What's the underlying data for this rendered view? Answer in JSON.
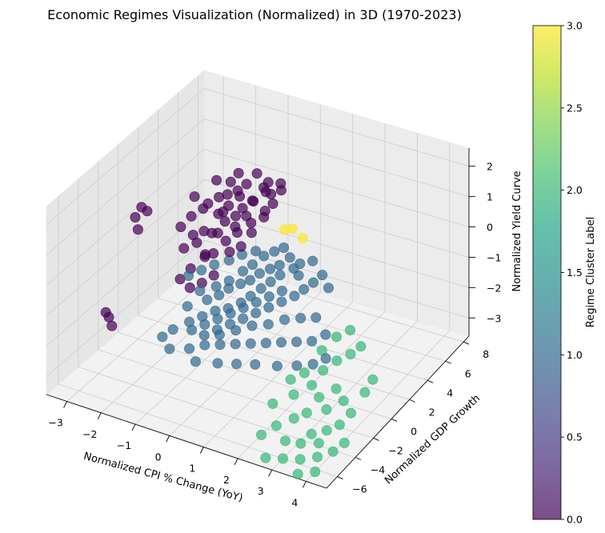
{
  "chart_data": {
    "type": "scatter",
    "title": "Economic Regimes Visualization (Normalized) in 3D (1970-2023)",
    "xlabel": "Normalized CPI % Change (YoY)",
    "ylabel": "Normalized GDP Growth",
    "zlabel": "Normalized Yield Curve",
    "xlim": [
      -3.6,
      4.6
    ],
    "ylim": [
      -7.2,
      8.6
    ],
    "zlim": [
      -3.6,
      2.6
    ],
    "x_ticks": [
      -3,
      -2,
      -1,
      0,
      1,
      2,
      3,
      4
    ],
    "y_ticks": [
      -6,
      -4,
      -2,
      0,
      2,
      4,
      6,
      8
    ],
    "z_ticks": [
      -3,
      -2,
      -1,
      0,
      1,
      2
    ],
    "grid": true,
    "point_size": 8,
    "alpha": 0.7,
    "colorbar": {
      "label": "Regime Cluster Label",
      "min": 0.0,
      "max": 3.0,
      "ticks": [
        "0.0",
        "0.5",
        "1.0",
        "1.5",
        "2.0",
        "2.5",
        "3.0"
      ],
      "colormap": "viridis"
    },
    "series": [
      {
        "cluster": 0,
        "color": "#440154",
        "points": [
          [
            -3.05,
            0.5,
            0.58
          ],
          [
            -2.85,
            0.4,
            0.55
          ],
          [
            -3.15,
            0.2,
            0.3
          ],
          [
            -2.95,
            -0.2,
            0.08
          ],
          [
            -1.78,
            1.6,
            1.05
          ],
          [
            -1.55,
            2.2,
            0.72
          ],
          [
            -3.2,
            -2.6,
            -2.05
          ],
          [
            -3.05,
            -2.8,
            -2.1
          ],
          [
            -2.9,
            -3.0,
            -2.28
          ],
          [
            -1.2,
            0.6,
            0.4
          ],
          [
            -1.05,
            0.9,
            0.3
          ],
          [
            -1.3,
            0.2,
            0.1
          ],
          [
            -1.0,
            1.4,
            0.8
          ],
          [
            -0.8,
            1.2,
            1.0
          ],
          [
            -0.6,
            0.7,
            0.9
          ],
          [
            -0.9,
            2.0,
            1.3
          ],
          [
            -0.5,
            1.9,
            1.4
          ],
          [
            -0.3,
            1.5,
            1.2
          ],
          [
            -0.1,
            1.2,
            1.1
          ],
          [
            0.1,
            1.0,
            1.0
          ],
          [
            -0.7,
            0.3,
            0.6
          ],
          [
            -0.4,
            0.1,
            0.5
          ],
          [
            -0.2,
            0.6,
            0.7
          ],
          [
            0.0,
            1.6,
            1.5
          ],
          [
            0.2,
            2.2,
            1.7
          ],
          [
            -0.5,
            2.6,
            1.6
          ],
          [
            -0.8,
            2.8,
            1.8
          ],
          [
            -0.3,
            3.0,
            1.9
          ],
          [
            0.1,
            2.8,
            1.8
          ],
          [
            0.3,
            2.4,
            1.6
          ],
          [
            -1.1,
            1.8,
            1.2
          ],
          [
            -1.4,
            1.2,
            0.9
          ],
          [
            -1.5,
            0.5,
            0.2
          ],
          [
            -1.6,
            -0.1,
            -0.1
          ],
          [
            -0.9,
            -0.3,
            0.0
          ],
          [
            -0.6,
            -0.5,
            0.2
          ],
          [
            -0.2,
            -0.2,
            0.3
          ],
          [
            0.0,
            0.3,
            0.4
          ],
          [
            0.2,
            0.7,
            0.8
          ],
          [
            0.4,
            1.3,
            1.2
          ],
          [
            0.5,
            1.9,
            1.5
          ],
          [
            -1.0,
            0.0,
            -0.2
          ],
          [
            -1.25,
            -0.6,
            -0.5
          ],
          [
            -1.45,
            -1.0,
            -0.8
          ],
          [
            -1.1,
            -1.2,
            -0.9
          ],
          [
            -0.8,
            -1.0,
            -0.7
          ],
          [
            -0.5,
            -0.8,
            -0.4
          ],
          [
            -1.35,
            2.4,
            1.5
          ],
          [
            -0.65,
            2.2,
            1.45
          ],
          [
            -0.15,
            2.0,
            1.35
          ],
          [
            0.35,
            1.6,
            1.3
          ],
          [
            0.55,
            2.6,
            1.75
          ],
          [
            -0.95,
            2.5,
            1.55
          ],
          [
            -1.7,
            1.0,
            0.6
          ],
          [
            -1.9,
            0.6,
            0.3
          ],
          [
            -0.35,
            0.9,
            0.75
          ],
          [
            -0.75,
            1.6,
            1.1
          ],
          [
            -0.45,
            1.3,
            0.95
          ],
          [
            0.05,
            2.5,
            1.7
          ],
          [
            0.45,
            2.9,
            1.85
          ]
        ]
      },
      {
        "cluster": 1,
        "color": "#31688e",
        "points": [
          [
            -0.8,
            -1.2,
            -0.9
          ],
          [
            -0.5,
            -1.5,
            -1.0
          ],
          [
            -0.2,
            -1.3,
            -0.8
          ],
          [
            0.0,
            -1.0,
            -0.6
          ],
          [
            0.3,
            -0.8,
            -0.4
          ],
          [
            0.5,
            -0.5,
            -0.3
          ],
          [
            0.7,
            -0.2,
            -0.1
          ],
          [
            0.9,
            0.2,
            0.0
          ],
          [
            1.1,
            0.5,
            0.1
          ],
          [
            0.2,
            -0.2,
            -0.2
          ],
          [
            0.4,
            0.1,
            0.0
          ],
          [
            -0.1,
            -0.6,
            -0.5
          ],
          [
            -0.4,
            -0.9,
            -0.7
          ],
          [
            0.6,
            0.6,
            0.2
          ],
          [
            0.8,
            1.0,
            0.3
          ],
          [
            1.0,
            1.3,
            0.4
          ],
          [
            1.3,
            0.9,
            0.3
          ],
          [
            1.5,
            0.6,
            0.1
          ],
          [
            1.2,
            0.2,
            -0.1
          ],
          [
            1.0,
            -0.1,
            -0.3
          ],
          [
            0.8,
            -0.4,
            -0.5
          ],
          [
            0.6,
            -0.8,
            -0.7
          ],
          [
            0.4,
            -1.1,
            -0.9
          ],
          [
            0.1,
            -1.4,
            -1.1
          ],
          [
            -0.2,
            -1.7,
            -1.2
          ],
          [
            -0.5,
            -2.0,
            -1.4
          ],
          [
            -0.8,
            -2.3,
            -1.6
          ],
          [
            -1.0,
            -1.8,
            -1.3
          ],
          [
            -0.3,
            -2.5,
            -1.8
          ],
          [
            0.0,
            -2.2,
            -1.6
          ],
          [
            0.3,
            -1.9,
            -1.4
          ],
          [
            0.6,
            -1.6,
            -1.2
          ],
          [
            0.9,
            -1.3,
            -1.0
          ],
          [
            1.2,
            -1.0,
            -0.8
          ],
          [
            1.5,
            -0.7,
            -0.6
          ],
          [
            1.8,
            -0.4,
            -0.4
          ],
          [
            2.0,
            -0.1,
            -0.2
          ],
          [
            2.2,
            0.2,
            0.0
          ],
          [
            1.7,
            0.4,
            0.0
          ],
          [
            1.4,
            -0.3,
            -0.4
          ],
          [
            1.1,
            -0.6,
            -0.6
          ],
          [
            0.8,
            -0.9,
            -0.8
          ],
          [
            0.5,
            -1.2,
            -1.0
          ],
          [
            0.2,
            -1.5,
            -1.2
          ],
          [
            -0.1,
            -1.8,
            -1.4
          ],
          [
            -0.4,
            -2.1,
            -1.6
          ],
          [
            -0.7,
            -2.4,
            -1.8
          ],
          [
            -1.2,
            -2.6,
            -1.9
          ],
          [
            -1.4,
            -3.0,
            -2.1
          ],
          [
            -1.1,
            -3.3,
            -2.3
          ],
          [
            -0.6,
            -3.0,
            -2.2
          ],
          [
            -0.2,
            -2.8,
            -2.0
          ],
          [
            0.2,
            -2.6,
            -1.9
          ],
          [
            0.6,
            -2.4,
            -1.8
          ],
          [
            1.0,
            -2.2,
            -1.7
          ],
          [
            1.4,
            -2.0,
            -1.6
          ],
          [
            1.8,
            -1.8,
            -1.5
          ],
          [
            2.2,
            -1.6,
            -1.4
          ],
          [
            2.6,
            -1.4,
            -1.3
          ],
          [
            2.9,
            -1.0,
            -1.1
          ],
          [
            2.5,
            -0.6,
            -0.8
          ],
          [
            2.1,
            -0.8,
            -0.9
          ],
          [
            1.7,
            -1.1,
            -1.0
          ],
          [
            1.3,
            -1.4,
            -1.2
          ],
          [
            0.9,
            -1.7,
            -1.3
          ],
          [
            0.5,
            -2.0,
            -1.5
          ],
          [
            0.1,
            -2.3,
            -1.7
          ],
          [
            -0.3,
            -3.4,
            -2.4
          ],
          [
            0.3,
            -3.2,
            -2.3
          ],
          [
            0.8,
            -3.0,
            -2.2
          ],
          [
            1.3,
            -2.8,
            -2.1
          ],
          [
            1.9,
            -2.6,
            -2.0
          ],
          [
            2.4,
            -2.3,
            -1.9
          ],
          [
            2.8,
            -2.0,
            -1.8
          ],
          [
            3.1,
            -1.7,
            -1.6
          ],
          [
            1.6,
            0.9,
            0.2
          ],
          [
            1.9,
            1.2,
            0.3
          ],
          [
            2.3,
            0.8,
            0.1
          ],
          [
            2.6,
            0.4,
            -0.1
          ],
          [
            -0.6,
            -0.4,
            -0.2
          ],
          [
            -0.9,
            -0.7,
            -0.4
          ],
          [
            -1.2,
            -1.0,
            -0.6
          ],
          [
            0.0,
            0.4,
            0.1
          ],
          [
            0.3,
            0.8,
            0.2
          ],
          [
            -0.3,
            0.1,
            -0.1
          ]
        ]
      },
      {
        "cluster": 2,
        "color": "#35b779",
        "points": [
          [
            2.6,
            -2.2,
            -2.1
          ],
          [
            2.9,
            -2.5,
            -2.3
          ],
          [
            3.2,
            -2.8,
            -2.5
          ],
          [
            3.5,
            -3.1,
            -2.7
          ],
          [
            3.0,
            -3.4,
            -2.9
          ],
          [
            2.7,
            -3.7,
            -3.1
          ],
          [
            3.3,
            -4.0,
            -3.3
          ],
          [
            3.6,
            -4.3,
            -3.4
          ],
          [
            2.4,
            -4.5,
            -3.2
          ],
          [
            2.8,
            -5.0,
            -3.4
          ],
          [
            3.8,
            -5.2,
            -3.5
          ],
          [
            3.4,
            -5.6,
            -3.6
          ],
          [
            2.2,
            -5.4,
            -3.3
          ],
          [
            4.0,
            -6.2,
            -3.6
          ],
          [
            3.1,
            -2.0,
            -1.9
          ],
          [
            3.4,
            -1.6,
            -1.6
          ],
          [
            3.7,
            -1.2,
            -1.4
          ],
          [
            3.9,
            -0.8,
            -1.2
          ],
          [
            3.5,
            -0.5,
            -0.9
          ],
          [
            3.2,
            -0.9,
            -1.1
          ],
          [
            2.9,
            -1.4,
            -1.5
          ],
          [
            3.6,
            -2.4,
            -2.2
          ],
          [
            3.9,
            -2.7,
            -2.4
          ],
          [
            4.2,
            -3.0,
            -2.6
          ],
          [
            4.0,
            -3.5,
            -2.9
          ],
          [
            3.7,
            -3.8,
            -3.1
          ],
          [
            4.3,
            -4.1,
            -3.2
          ],
          [
            4.1,
            -4.6,
            -3.4
          ],
          [
            3.2,
            -4.8,
            -3.4
          ],
          [
            2.5,
            -3.0,
            -2.6
          ],
          [
            2.3,
            -2.6,
            -2.3
          ],
          [
            3.0,
            -6.0,
            -3.6
          ],
          [
            2.6,
            -6.4,
            -3.6
          ],
          [
            3.6,
            -6.6,
            -3.7
          ],
          [
            4.4,
            -2.2,
            -2.1
          ],
          [
            4.5,
            -1.7,
            -1.8
          ],
          [
            2.1,
            -3.8,
            -2.8
          ]
        ]
      },
      {
        "cluster": 3,
        "color": "#fde725",
        "points": [
          [
            1.05,
            1.2,
            1.05
          ],
          [
            1.25,
            1.35,
            1.1
          ],
          [
            1.6,
            1.2,
            0.95
          ]
        ]
      }
    ]
  }
}
